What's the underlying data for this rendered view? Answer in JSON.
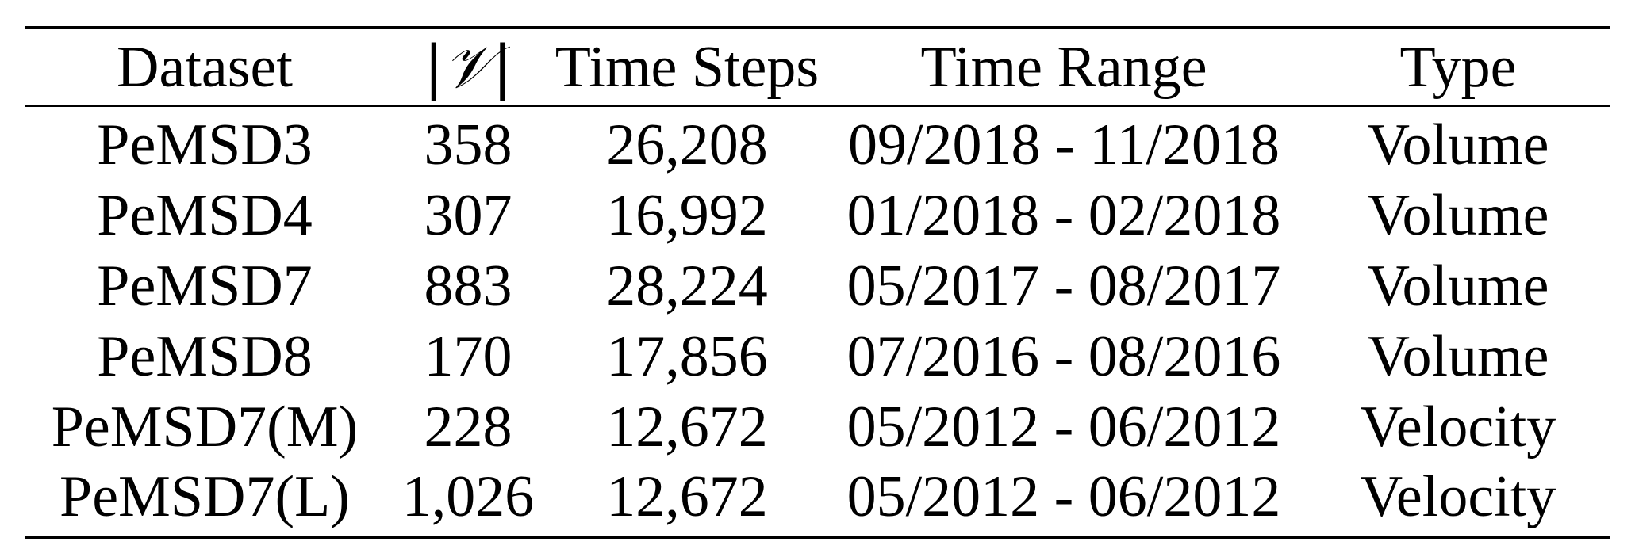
{
  "table": {
    "headers": {
      "dataset": "Dataset",
      "nodes": "|𝒱|",
      "time_steps": "Time Steps",
      "time_range": "Time Range",
      "type": "Type"
    },
    "rows": [
      {
        "dataset": "PeMSD3",
        "nodes": "358",
        "time_steps": "26,208",
        "time_range": "09/2018 - 11/2018",
        "type": "Volume"
      },
      {
        "dataset": "PeMSD4",
        "nodes": "307",
        "time_steps": "16,992",
        "time_range": "01/2018 - 02/2018",
        "type": "Volume"
      },
      {
        "dataset": "PeMSD7",
        "nodes": "883",
        "time_steps": "28,224",
        "time_range": "05/2017 - 08/2017",
        "type": "Volume"
      },
      {
        "dataset": "PeMSD8",
        "nodes": "170",
        "time_steps": "17,856",
        "time_range": "07/2016 - 08/2016",
        "type": "Volume"
      },
      {
        "dataset": "PeMSD7(M)",
        "nodes": "228",
        "time_steps": "12,672",
        "time_range": "05/2012 - 06/2012",
        "type": "Velocity"
      },
      {
        "dataset": "PeMSD7(L)",
        "nodes": "1,026",
        "time_steps": "12,672",
        "time_range": "05/2012 - 06/2012",
        "type": "Velocity"
      }
    ]
  }
}
